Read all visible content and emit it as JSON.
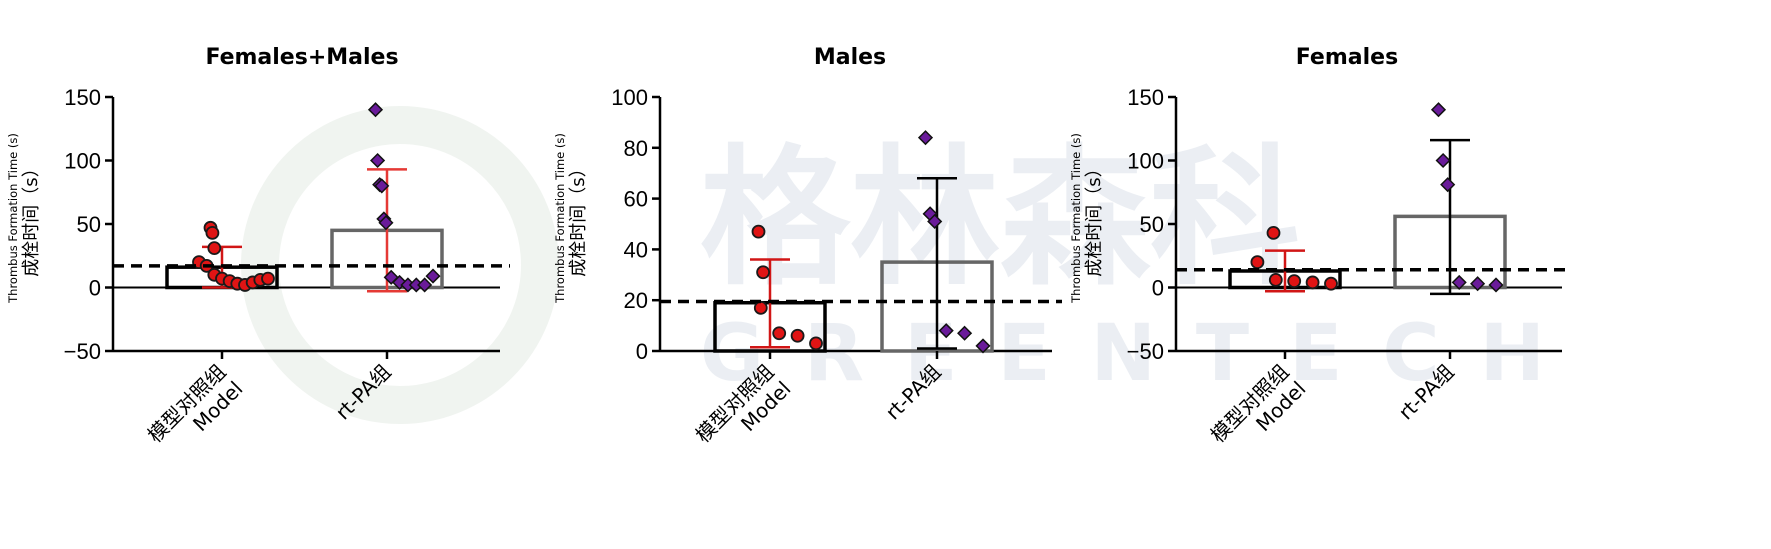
{
  "chart_data": [
    {
      "type": "bar",
      "title": "Females+Males",
      "ylabel_en": "Thrombus Formation Time (s)",
      "ylabel_cn": "成栓时间（s）",
      "ylim": [
        -50,
        150
      ],
      "yticks": [
        -50,
        0,
        50,
        100,
        150
      ],
      "reference_line": 17,
      "categories": [
        {
          "line1": "模型对照组",
          "line2": "Model"
        },
        {
          "line1": "rt-PA组",
          "line2": ""
        }
      ],
      "series": [
        {
          "mean": 16,
          "sd_low": 0,
          "sd_high": 32,
          "color": "#d11616",
          "bar_color": "#000000",
          "marker": "circle",
          "points": [
            47,
            43,
            31,
            20,
            17,
            10,
            7,
            5,
            3,
            2,
            4,
            6,
            7
          ]
        },
        {
          "mean": 45,
          "sd_low": -3,
          "sd_high": 93,
          "color": "#e53935",
          "bar_color": "#666666",
          "marker": "diamond",
          "points": [
            140,
            100,
            81,
            80,
            54,
            51,
            8,
            4,
            2,
            2,
            2,
            9
          ]
        }
      ]
    },
    {
      "type": "bar",
      "title": "Males",
      "ylabel_en": "Thrombus Formation Time (s)",
      "ylabel_cn": "成栓时间（s）",
      "ylim": [
        0,
        100
      ],
      "yticks": [
        0,
        20,
        40,
        60,
        80,
        100
      ],
      "reference_line": 19.5,
      "categories": [
        {
          "line1": "模型对照组",
          "line2": "Model"
        },
        {
          "line1": "rt-PA组",
          "line2": ""
        }
      ],
      "series": [
        {
          "mean": 19,
          "sd_low": 1.5,
          "sd_high": 36,
          "color": "#d11616",
          "bar_color": "#000000",
          "marker": "circle",
          "points": [
            47,
            31,
            17,
            7,
            6,
            3
          ]
        },
        {
          "mean": 35,
          "sd_low": 1,
          "sd_high": 68,
          "color": "#000000",
          "bar_color": "#666666",
          "marker": "diamond",
          "points": [
            84,
            54,
            51,
            8,
            7,
            2
          ]
        }
      ]
    },
    {
      "type": "bar",
      "title": "Females",
      "ylabel_en": "Thrombus Formation Time (s)",
      "ylabel_cn": "成栓时间（s）",
      "ylim": [
        -50,
        150
      ],
      "yticks": [
        -50,
        0,
        50,
        100,
        150
      ],
      "reference_line": 14,
      "categories": [
        {
          "line1": "模型对照组",
          "line2": "Model"
        },
        {
          "line1": "rt-PA组",
          "line2": ""
        }
      ],
      "series": [
        {
          "mean": 13,
          "sd_low": -3,
          "sd_high": 29,
          "color": "#d11616",
          "bar_color": "#000000",
          "marker": "circle",
          "points": [
            43,
            20,
            6,
            5,
            4,
            3
          ]
        },
        {
          "mean": 56,
          "sd_low": -5,
          "sd_high": 116,
          "color": "#000000",
          "bar_color": "#666666",
          "marker": "diamond",
          "points": [
            140,
            100,
            81,
            4,
            3,
            2
          ]
        }
      ]
    }
  ],
  "watermark": {
    "line1": "格林森科",
    "line2": "GREENTECH"
  }
}
